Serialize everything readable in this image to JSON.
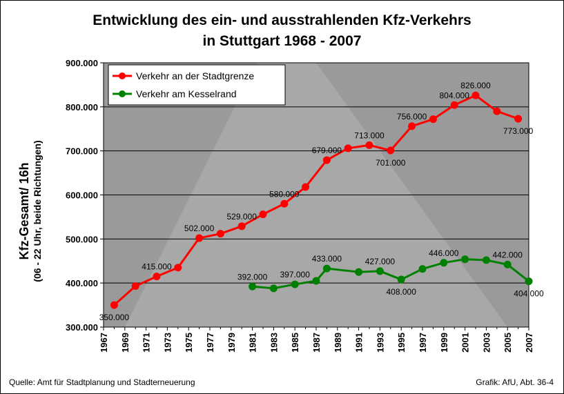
{
  "title_line1": "Entwicklung des ein- und ausstrahlenden Kfz-Verkehrs",
  "title_line2": "in Stuttgart 1968 - 2007",
  "ylabel_line1": "Kfz-Gesamt/ 16h",
  "ylabel_line2": "(06 - 22 Uhr, beide Richtungen)",
  "footer_source": "Quelle: Amt für Stadtplanung und Stadterneuerung",
  "footer_credit": "Grafik: AfU, Abt. 36-4",
  "colors": {
    "series1": "#ff0000",
    "series2": "#008000",
    "plot_bg": "#9a9a9a"
  },
  "chart_data": {
    "type": "line",
    "title": "Entwicklung des ein- und ausstrahlenden Kfz-Verkehrs in Stuttgart 1968 - 2007",
    "xlabel": "",
    "ylabel": "Kfz-Gesamt/ 16h (06 - 22 Uhr, beide Richtungen)",
    "xlim": [
      1967,
      2007
    ],
    "ylim": [
      300000,
      900000
    ],
    "y_ticks": [
      300000,
      400000,
      500000,
      600000,
      700000,
      800000,
      900000
    ],
    "y_tick_labels": [
      "300.000",
      "400.000",
      "500.000",
      "600.000",
      "700.000",
      "800.000",
      "900.000"
    ],
    "x_tick_labels": [
      "1967",
      "1969",
      "1971",
      "1973",
      "1975",
      "1977",
      "1979",
      "1981",
      "1983",
      "1985",
      "1987",
      "1989",
      "1991",
      "1993",
      "1995",
      "1997",
      "1999",
      "2001",
      "2003",
      "2005",
      "2007"
    ],
    "grid": "horizontal",
    "legend": "top-left",
    "series": [
      {
        "name": "Verkehr an der Stadtgrenze",
        "color": "#ff0000",
        "x": [
          1968,
          1970,
          1972,
          1974,
          1976,
          1978,
          1980,
          1982,
          1984,
          1986,
          1988,
          1990,
          1992,
          1994,
          1996,
          1998,
          2000,
          2002,
          2004,
          2006
        ],
        "values": [
          350000,
          393000,
          415000,
          435000,
          502000,
          512000,
          529000,
          556000,
          580000,
          618000,
          679000,
          706000,
          713000,
          701000,
          756000,
          772000,
          804000,
          826000,
          790000,
          773000
        ],
        "data_labels": [
          {
            "x": 1968,
            "text": "350.000",
            "pos": "below"
          },
          {
            "x": 1972,
            "text": "415.000",
            "pos": "above"
          },
          {
            "x": 1976,
            "text": "502.000",
            "pos": "above"
          },
          {
            "x": 1980,
            "text": "529.000",
            "pos": "above"
          },
          {
            "x": 1984,
            "text": "580.000",
            "pos": "above"
          },
          {
            "x": 1988,
            "text": "679.000",
            "pos": "above"
          },
          {
            "x": 1992,
            "text": "713.000",
            "pos": "above"
          },
          {
            "x": 1994,
            "text": "701.000",
            "pos": "below"
          },
          {
            "x": 1996,
            "text": "756.000",
            "pos": "above"
          },
          {
            "x": 2000,
            "text": "804.000",
            "pos": "above"
          },
          {
            "x": 2002,
            "text": "826.000",
            "pos": "above"
          },
          {
            "x": 2006,
            "text": "773.000",
            "pos": "below"
          }
        ]
      },
      {
        "name": "Verkehr am Kesselrand",
        "color": "#008000",
        "x": [
          1981,
          1983,
          1985,
          1987,
          1988,
          1991,
          1993,
          1995,
          1997,
          1999,
          2001,
          2003,
          2005,
          2007
        ],
        "values": [
          392000,
          388000,
          397000,
          405000,
          433000,
          425000,
          427000,
          408000,
          432000,
          446000,
          454000,
          452000,
          442000,
          404000
        ],
        "data_labels": [
          {
            "x": 1981,
            "text": "392.000",
            "pos": "above"
          },
          {
            "x": 1985,
            "text": "397.000",
            "pos": "above"
          },
          {
            "x": 1988,
            "text": "433.000",
            "pos": "above"
          },
          {
            "x": 1993,
            "text": "427.000",
            "pos": "above"
          },
          {
            "x": 1995,
            "text": "408.000",
            "pos": "below"
          },
          {
            "x": 1999,
            "text": "446.000",
            "pos": "above"
          },
          {
            "x": 2005,
            "text": "442.000",
            "pos": "above"
          },
          {
            "x": 2007,
            "text": "404.000",
            "pos": "below"
          }
        ]
      }
    ]
  }
}
